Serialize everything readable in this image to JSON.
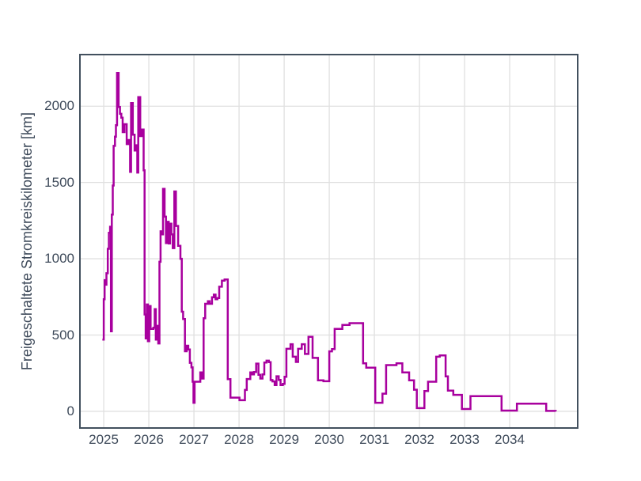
{
  "chart_data": {
    "type": "line",
    "style": "step-post",
    "title": "",
    "xlabel": "",
    "ylabel": "Freigeschaltete Stromkreiskilometer [km]",
    "legend": "none",
    "grid": "on",
    "xlim": [
      2024.49,
      2035.49
    ],
    "ylim": [
      -104,
      2333
    ],
    "x_tick_labels": [
      "2025",
      "2026",
      "2027",
      "2028",
      "2029",
      "2030",
      "2031",
      "2032",
      "2033",
      "2034"
    ],
    "x_tick_values": [
      2025,
      2026,
      2027,
      2028,
      2029,
      2030,
      2031,
      2032,
      2033,
      2034
    ],
    "x_gridlines": [
      2025,
      2026,
      2027,
      2028,
      2029,
      2030,
      2031,
      2032,
      2033,
      2034,
      2035
    ],
    "y_tick_labels": [
      "0",
      "500",
      "1000",
      "1500",
      "2000"
    ],
    "y_tick_values": [
      0,
      500,
      1000,
      1500,
      2000
    ],
    "y_gridlines": [
      0,
      500,
      1000,
      1500,
      2000
    ],
    "colors": {
      "line": "#a8009e",
      "grid": "#e0e0e0",
      "axis_border": "#42505e",
      "text": "#3e4a5a",
      "background": "#ffffff"
    },
    "series": [
      {
        "name": "Freigeschaltete Stromkreiskilometer",
        "x_unit": "year (decimal)",
        "y_unit": "km",
        "points": [
          [
            2024.97,
            470
          ],
          [
            2025.0,
            735
          ],
          [
            2025.02,
            860
          ],
          [
            2025.04,
            830
          ],
          [
            2025.06,
            905
          ],
          [
            2025.09,
            1065
          ],
          [
            2025.115,
            1170
          ],
          [
            2025.14,
            1210
          ],
          [
            2025.16,
            525
          ],
          [
            2025.18,
            1290
          ],
          [
            2025.2,
            1480
          ],
          [
            2025.22,
            1740
          ],
          [
            2025.25,
            1800
          ],
          [
            2025.27,
            1875
          ],
          [
            2025.295,
            2218
          ],
          [
            2025.33,
            1995
          ],
          [
            2025.36,
            1950
          ],
          [
            2025.39,
            1925
          ],
          [
            2025.42,
            1830
          ],
          [
            2025.46,
            1882
          ],
          [
            2025.51,
            1752
          ],
          [
            2025.55,
            1778
          ],
          [
            2025.585,
            1570
          ],
          [
            2025.605,
            2021
          ],
          [
            2025.645,
            1813
          ],
          [
            2025.685,
            1709
          ],
          [
            2025.72,
            1744
          ],
          [
            2025.745,
            1565
          ],
          [
            2025.765,
            2059
          ],
          [
            2025.81,
            1804
          ],
          [
            2025.85,
            1847
          ],
          [
            2025.885,
            1580
          ],
          [
            2025.905,
            635
          ],
          [
            2025.93,
            478
          ],
          [
            2025.955,
            700
          ],
          [
            2025.98,
            460
          ],
          [
            2026.01,
            690
          ],
          [
            2026.04,
            540
          ],
          [
            2026.1,
            548
          ],
          [
            2026.13,
            670
          ],
          [
            2026.155,
            470
          ],
          [
            2026.18,
            560
          ],
          [
            2026.21,
            445
          ],
          [
            2026.235,
            980
          ],
          [
            2026.26,
            1180
          ],
          [
            2026.29,
            1160
          ],
          [
            2026.315,
            1458
          ],
          [
            2026.35,
            1276
          ],
          [
            2026.38,
            1103
          ],
          [
            2026.41,
            1242
          ],
          [
            2026.44,
            1100
          ],
          [
            2026.47,
            1230
          ],
          [
            2026.5,
            1160
          ],
          [
            2026.53,
            1070
          ],
          [
            2026.565,
            1441
          ],
          [
            2026.6,
            1215
          ],
          [
            2026.65,
            1085
          ],
          [
            2026.7,
            1000
          ],
          [
            2026.73,
            653
          ],
          [
            2026.76,
            605
          ],
          [
            2026.8,
            394
          ],
          [
            2026.84,
            430
          ],
          [
            2026.875,
            405
          ],
          [
            2026.91,
            318
          ],
          [
            2026.945,
            288
          ],
          [
            2026.97,
            194
          ],
          [
            2026.99,
            56
          ],
          [
            2027.015,
            194
          ],
          [
            2027.14,
            255
          ],
          [
            2027.18,
            215
          ],
          [
            2027.215,
            610
          ],
          [
            2027.25,
            705
          ],
          [
            2027.31,
            722
          ],
          [
            2027.35,
            705
          ],
          [
            2027.4,
            748
          ],
          [
            2027.44,
            765
          ],
          [
            2027.48,
            735
          ],
          [
            2027.52,
            742
          ],
          [
            2027.56,
            817
          ],
          [
            2027.62,
            857
          ],
          [
            2027.68,
            864
          ],
          [
            2027.75,
            211
          ],
          [
            2027.81,
            90
          ],
          [
            2028.01,
            73
          ],
          [
            2028.13,
            140
          ],
          [
            2028.17,
            212
          ],
          [
            2028.25,
            255
          ],
          [
            2028.29,
            242
          ],
          [
            2028.33,
            258
          ],
          [
            2028.38,
            313
          ],
          [
            2028.43,
            240
          ],
          [
            2028.47,
            215
          ],
          [
            2028.52,
            242
          ],
          [
            2028.56,
            320
          ],
          [
            2028.61,
            332
          ],
          [
            2028.66,
            322
          ],
          [
            2028.7,
            205
          ],
          [
            2028.74,
            196
          ],
          [
            2028.79,
            172
          ],
          [
            2028.83,
            230
          ],
          [
            2028.88,
            206
          ],
          [
            2028.92,
            172
          ],
          [
            2028.97,
            180
          ],
          [
            2029.01,
            227
          ],
          [
            2029.05,
            410
          ],
          [
            2029.14,
            440
          ],
          [
            2029.19,
            358
          ],
          [
            2029.26,
            324
          ],
          [
            2029.31,
            410
          ],
          [
            2029.39,
            440
          ],
          [
            2029.46,
            376
          ],
          [
            2029.54,
            488
          ],
          [
            2029.63,
            350
          ],
          [
            2029.75,
            203
          ],
          [
            2029.87,
            197
          ],
          [
            2030.0,
            393
          ],
          [
            2030.06,
            408
          ],
          [
            2030.12,
            540
          ],
          [
            2030.29,
            566
          ],
          [
            2030.45,
            578
          ],
          [
            2030.75,
            315
          ],
          [
            2030.82,
            286
          ],
          [
            2031.02,
            56
          ],
          [
            2031.18,
            116
          ],
          [
            2031.26,
            303
          ],
          [
            2031.49,
            315
          ],
          [
            2031.62,
            255
          ],
          [
            2031.77,
            203
          ],
          [
            2031.88,
            142
          ],
          [
            2031.94,
            21
          ],
          [
            2032.11,
            133
          ],
          [
            2032.19,
            194
          ],
          [
            2032.37,
            358
          ],
          [
            2032.45,
            367
          ],
          [
            2032.58,
            229
          ],
          [
            2032.63,
            136
          ],
          [
            2032.75,
            108
          ],
          [
            2032.94,
            15
          ],
          [
            2033.13,
            99
          ],
          [
            2033.82,
            5
          ],
          [
            2034.16,
            50
          ],
          [
            2034.81,
            3
          ],
          [
            2035.02,
            0
          ]
        ]
      }
    ]
  }
}
